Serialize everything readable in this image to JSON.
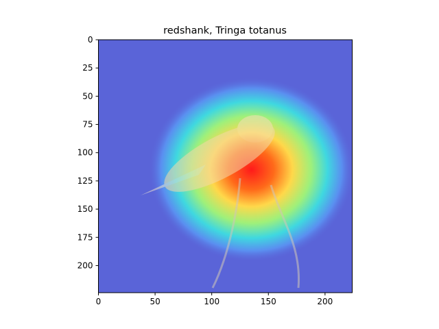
{
  "chart_data": {
    "type": "heatmap",
    "title": "redshank, Tringa totanus",
    "xlabel": "",
    "ylabel": "",
    "xlim": [
      0,
      224
    ],
    "ylim": [
      224,
      0
    ],
    "x_ticks": [
      "0",
      "50",
      "100",
      "150",
      "200"
    ],
    "y_ticks": [
      "0",
      "25",
      "50",
      "75",
      "100",
      "125",
      "150",
      "175",
      "200"
    ],
    "grid": false,
    "colormap": "jet",
    "overlay_alpha": 0.55,
    "heatmap_peak": {
      "x": 135,
      "y": 115,
      "value": 1.0
    },
    "colors": {
      "background": "#5a64d8",
      "subject": "#f5d9a8"
    }
  }
}
